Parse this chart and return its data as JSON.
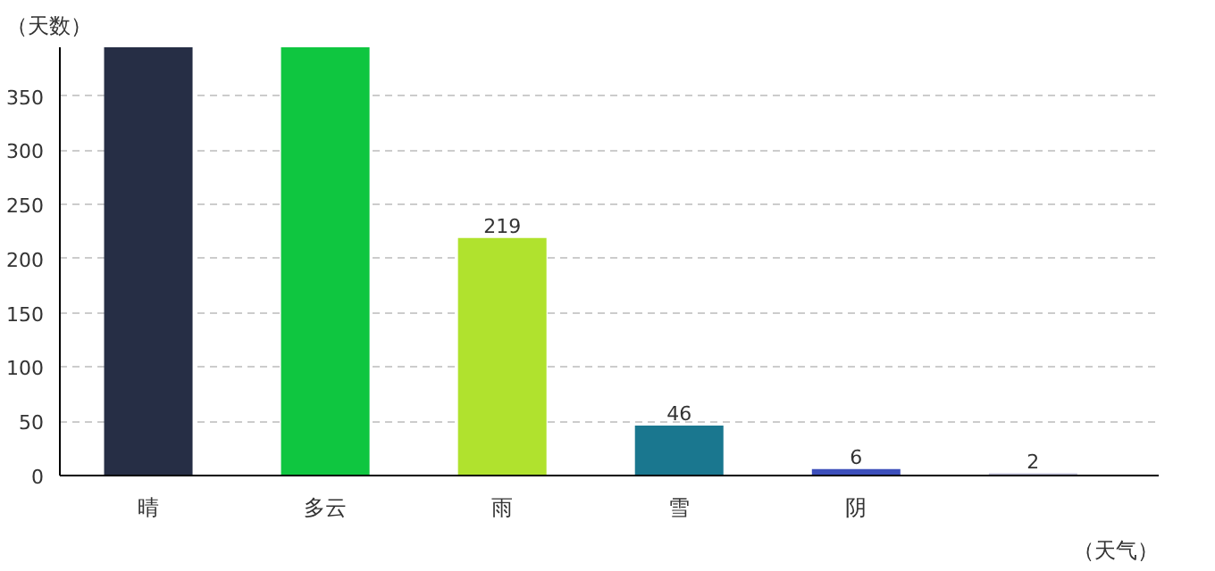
{
  "chart_data": {
    "type": "bar",
    "xlabel": "（天气）",
    "ylabel": "（天数）",
    "categories": [
      "晴",
      "多云",
      "雨",
      "雪",
      "阴",
      null
    ],
    "values": [
      395,
      395,
      219,
      46,
      6,
      2
    ],
    "colors": [
      "#262e45",
      "#0fc640",
      "#b0e22e",
      "#1a778f",
      "#3c4fbb",
      "#c0c0d8"
    ],
    "value_labels": [
      null,
      null,
      "219",
      "46",
      "6",
      "2"
    ],
    "ylim": [
      0,
      395
    ],
    "yticks": [
      0,
      50,
      100,
      150,
      200,
      250,
      300,
      350
    ],
    "grid": "y"
  }
}
